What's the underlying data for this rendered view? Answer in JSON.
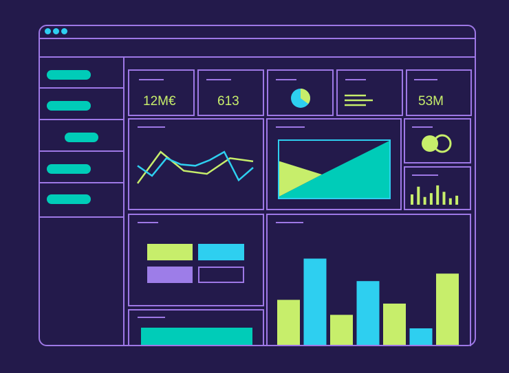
{
  "window": {
    "control_dots": [
      "dot-close",
      "dot-minimize",
      "dot-maximize"
    ]
  },
  "sidebar": {
    "items": [
      {
        "name": "sidebar-item-1",
        "icon": "pill"
      },
      {
        "name": "sidebar-item-2",
        "icon": "pill"
      },
      {
        "name": "sidebar-item-3",
        "icon": "pill"
      },
      {
        "name": "sidebar-item-4",
        "icon": "pill"
      },
      {
        "name": "sidebar-item-5",
        "icon": "pill"
      }
    ]
  },
  "kpis": {
    "revenue": "12M€",
    "count": "613",
    "volume": "53M",
    "pie_icon": "pie-chart-icon",
    "lines_icon": "text-lines-icon"
  },
  "widgets": {
    "venn_icon": "overlapping-circles-icon",
    "mini_bars_icon": "mini-bar-chart-icon",
    "legend_icon": "color-legend-icon",
    "area_icon": "area-chart-icon"
  },
  "colors": {
    "background": "#231a4b",
    "outline": "#9e78e6",
    "teal": "#00ccb8",
    "cyan": "#2ecff0",
    "lime": "#c7ee6b",
    "lavender": "#9d7de8"
  },
  "chart_data": [
    {
      "type": "line",
      "series": [
        {
          "values": [
            1,
            6,
            3,
            2.5,
            5,
            4.5
          ]
        },
        {
          "values": [
            3.8,
            2.2,
            5,
            4,
            3.8,
            4.7,
            6,
            1.5,
            3.5
          ]
        }
      ]
    },
    {
      "type": "bar",
      "values": [
        6,
        11.5,
        4,
        8.5,
        5.5,
        2.2,
        9.5
      ],
      "colors": [
        "#c7ee6b",
        "#2ecff0",
        "#c7ee6b",
        "#2ecff0",
        "#c7ee6b",
        "#2ecff0",
        "#c7ee6b"
      ]
    },
    {
      "type": "bar",
      "values": [
        4,
        7,
        3,
        4.5,
        7.5,
        5,
        2.5,
        3.5
      ],
      "colors": [
        "#c7ee6b",
        "#c7ee6b",
        "#c7ee6b",
        "#c7ee6b",
        "#c7ee6b",
        "#c7ee6b",
        "#c7ee6b",
        "#c7ee6b"
      ]
    }
  ]
}
